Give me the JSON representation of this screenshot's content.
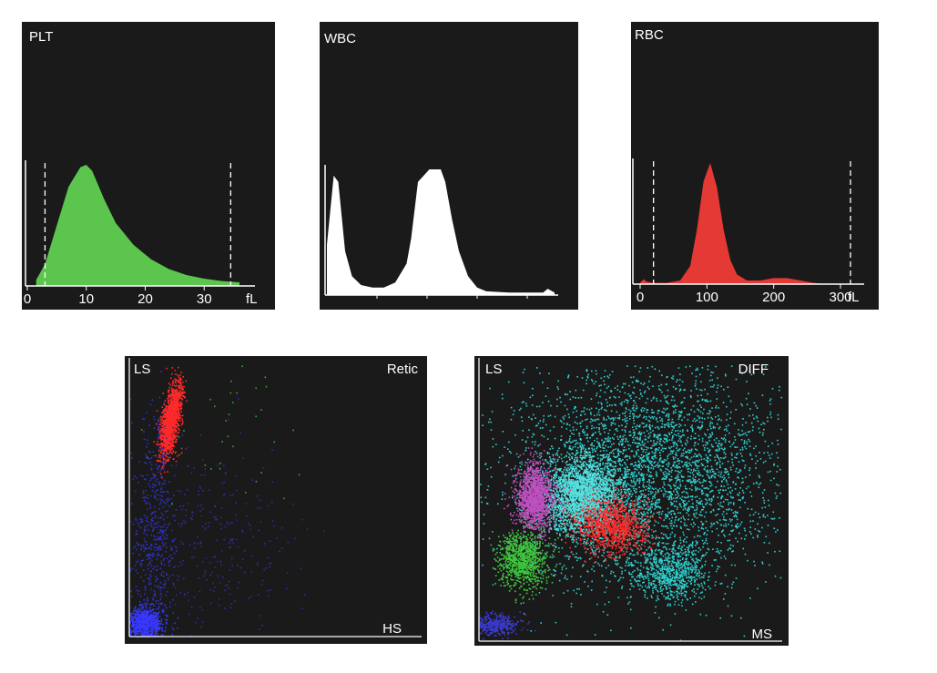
{
  "chart_data": [
    {
      "id": "plt",
      "type": "area",
      "title": "PLT",
      "xlabel": "fL",
      "x_ticks": [
        0,
        10,
        20,
        30
      ],
      "xlim": [
        0,
        38
      ],
      "markers": [
        3,
        34.5
      ],
      "fill_color": "#5cc54e",
      "x": [
        1.5,
        3,
        5,
        7,
        9,
        10,
        11,
        13,
        15,
        18,
        21,
        24,
        27,
        30,
        33,
        36
      ],
      "y": [
        0.05,
        0.18,
        0.5,
        0.82,
        0.98,
        1.0,
        0.95,
        0.72,
        0.52,
        0.34,
        0.22,
        0.14,
        0.09,
        0.06,
        0.04,
        0.03
      ]
    },
    {
      "id": "wbc",
      "type": "area",
      "title": "WBC",
      "fill_color": "#ffffff",
      "x": [
        0,
        0.03,
        0.05,
        0.08,
        0.11,
        0.15,
        0.2,
        0.25,
        0.3,
        0.35,
        0.37,
        0.4,
        0.45,
        0.5,
        0.52,
        0.55,
        0.58,
        0.62,
        0.66,
        0.7,
        0.8,
        0.9,
        0.95,
        0.97,
        1.0
      ],
      "y": [
        0.4,
        0.95,
        0.9,
        0.35,
        0.15,
        0.08,
        0.06,
        0.06,
        0.1,
        0.25,
        0.45,
        0.9,
        1.0,
        1.0,
        0.9,
        0.6,
        0.35,
        0.15,
        0.06,
        0.03,
        0.02,
        0.02,
        0.02,
        0.05,
        0.02
      ]
    },
    {
      "id": "rbc",
      "type": "area",
      "title": "RBC",
      "xlabel": "fL",
      "x_ticks": [
        0,
        100,
        200,
        300
      ],
      "xlim": [
        0,
        330
      ],
      "markers": [
        20,
        315
      ],
      "fill_color": "#e53935",
      "x": [
        0,
        5,
        10,
        20,
        40,
        60,
        75,
        85,
        95,
        105,
        115,
        125,
        135,
        145,
        160,
        180,
        200,
        220,
        240,
        260,
        280
      ],
      "y": [
        0.01,
        0.04,
        0.02,
        0.01,
        0.01,
        0.03,
        0.15,
        0.45,
        0.85,
        1.0,
        0.8,
        0.45,
        0.2,
        0.08,
        0.03,
        0.03,
        0.05,
        0.05,
        0.03,
        0.01,
        0.0
      ]
    },
    {
      "id": "retic",
      "type": "scatter",
      "title": "Retic",
      "ylabel": "LS",
      "xlabel": "HS",
      "clusters": [
        {
          "color": "#ff2a2a",
          "cx": 0.14,
          "cy": 0.8,
          "sx": 0.015,
          "sy": 0.07,
          "n": 1400,
          "rot": -10
        },
        {
          "color": "#3838ff",
          "cx": 0.05,
          "cy": 0.05,
          "sx": 0.03,
          "sy": 0.03,
          "n": 900,
          "rot": 0
        },
        {
          "color": "#3030c8",
          "cx": 0.08,
          "cy": 0.35,
          "sx": 0.04,
          "sy": 0.22,
          "n": 500,
          "rot": 0
        },
        {
          "color": "#2d2d9a",
          "cx": 0.25,
          "cy": 0.35,
          "sx": 0.15,
          "sy": 0.18,
          "n": 350,
          "rot": 0
        },
        {
          "color": "#39a539",
          "cx": 0.35,
          "cy": 0.8,
          "sx": 0.2,
          "sy": 0.15,
          "n": 40,
          "rot": 0
        }
      ]
    },
    {
      "id": "diff",
      "type": "scatter",
      "title": "DIFF",
      "ylabel": "LS",
      "xlabel": "MS",
      "clusters": [
        {
          "color": "#2fd0d0",
          "cx": 0.55,
          "cy": 0.6,
          "sx": 0.22,
          "sy": 0.2,
          "n": 4000,
          "rot": 0
        },
        {
          "color": "#56e0e0",
          "cx": 0.34,
          "cy": 0.53,
          "sx": 0.06,
          "sy": 0.07,
          "n": 2200,
          "rot": 0
        },
        {
          "color": "#c050c0",
          "cx": 0.18,
          "cy": 0.52,
          "sx": 0.03,
          "sy": 0.06,
          "n": 1400,
          "rot": 0
        },
        {
          "color": "#ff2b2b",
          "cx": 0.44,
          "cy": 0.42,
          "sx": 0.06,
          "sy": 0.05,
          "n": 1100,
          "rot": 0
        },
        {
          "color": "#3fc63f",
          "cx": 0.14,
          "cy": 0.3,
          "sx": 0.04,
          "sy": 0.05,
          "n": 1000,
          "rot": 0
        },
        {
          "color": "#3a3ad0",
          "cx": 0.05,
          "cy": 0.06,
          "sx": 0.04,
          "sy": 0.02,
          "n": 400,
          "rot": 0
        },
        {
          "color": "#2fd0d0",
          "cx": 0.63,
          "cy": 0.25,
          "sx": 0.06,
          "sy": 0.05,
          "n": 700,
          "rot": 0
        }
      ]
    }
  ]
}
